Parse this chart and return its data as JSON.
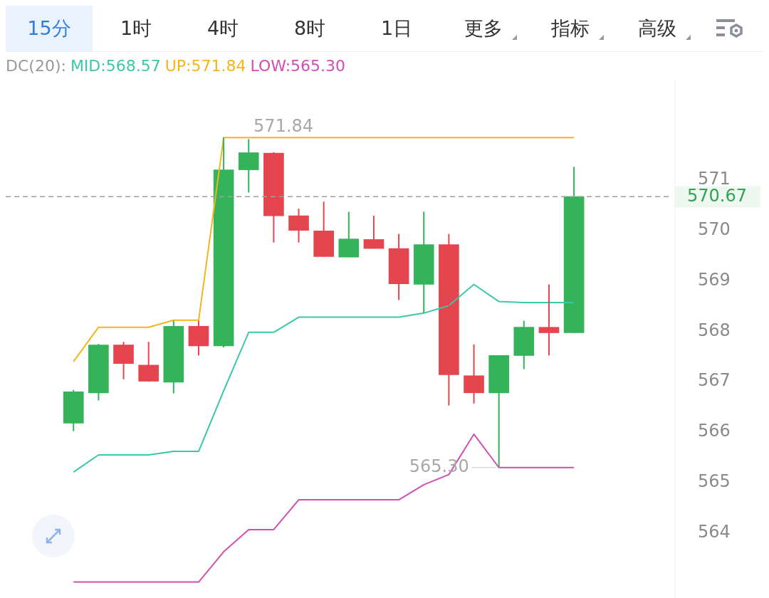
{
  "chart_data": {
    "type": "candlestick",
    "categories": [
      null,
      null,
      null,
      null,
      null,
      null,
      null,
      null,
      null,
      null,
      null,
      null,
      null,
      null,
      null,
      null,
      null,
      null,
      null,
      null,
      null
    ],
    "ohlc": [
      [
        566.18,
        566.84,
        566.02,
        566.8
      ],
      [
        566.78,
        567.75,
        566.63,
        567.73
      ],
      [
        567.73,
        567.79,
        567.05,
        567.36
      ],
      [
        567.33,
        567.79,
        567.0,
        567.01
      ],
      [
        566.99,
        568.21,
        566.77,
        568.1
      ],
      [
        568.1,
        568.21,
        567.52,
        567.71
      ],
      [
        567.71,
        571.84,
        567.68,
        571.2
      ],
      [
        571.2,
        571.81,
        570.75,
        571.54
      ],
      [
        571.53,
        571.55,
        569.76,
        570.29
      ],
      [
        570.29,
        570.43,
        569.76,
        570.0
      ],
      [
        569.99,
        570.57,
        569.48,
        569.48
      ],
      [
        569.47,
        570.37,
        569.47,
        569.83
      ],
      [
        569.82,
        570.29,
        569.64,
        569.64
      ],
      [
        569.64,
        569.93,
        568.62,
        568.94
      ],
      [
        568.93,
        570.37,
        568.36,
        569.72
      ],
      [
        569.72,
        569.93,
        566.53,
        567.14
      ],
      [
        567.12,
        567.74,
        566.57,
        566.78
      ],
      [
        566.78,
        567.52,
        565.3,
        567.52
      ],
      [
        567.52,
        568.21,
        567.25,
        568.08
      ],
      [
        568.08,
        568.93,
        567.52,
        567.97
      ],
      [
        567.97,
        571.26,
        567.97,
        570.67
      ]
    ],
    "colors": [
      "#35b35b",
      "#35b35b",
      "#e5454f",
      "#e5454f",
      "#35b35b",
      "#e5454f",
      "#35b35b",
      "#35b35b",
      "#e5454f",
      "#e5454f",
      "#e5454f",
      "#35b35b",
      "#e5454f",
      "#e5454f",
      "#35b35b",
      "#e5454f",
      "#e5454f",
      "#35b35b",
      "#35b35b",
      "#e5454f",
      "#35b35b"
    ],
    "legend_title": "DC(20):",
    "series": [
      {
        "type": "line",
        "name": "MID:568.57",
        "color": "#3cc8a6",
        "values": [
          565.21,
          565.55,
          565.55,
          565.55,
          565.62,
          565.62,
          566.82,
          567.98,
          567.98,
          568.28,
          568.28,
          568.28,
          568.28,
          568.28,
          568.36,
          568.51,
          568.93,
          568.59,
          568.57,
          568.57,
          568.57
        ]
      },
      {
        "type": "line",
        "name": "UP:571.84",
        "color": "#f0b61c",
        "values": [
          567.4,
          568.08,
          568.08,
          568.08,
          568.22,
          568.22,
          571.84,
          571.84,
          571.84,
          571.84,
          571.84,
          571.84,
          571.84,
          571.84,
          571.84,
          571.84,
          571.84,
          571.84,
          571.84,
          571.84,
          571.84
        ]
      },
      {
        "type": "line",
        "name": "LOW:565.30",
        "color": "#d24fb1",
        "values": [
          563.03,
          563.03,
          563.03,
          563.03,
          563.03,
          563.03,
          563.63,
          564.07,
          564.07,
          564.66,
          564.66,
          564.66,
          564.66,
          564.66,
          564.96,
          565.16,
          565.96,
          565.3,
          565.3,
          565.3,
          565.3
        ]
      }
    ],
    "ylim": [
      562.7,
      573
    ],
    "yticks": [
      564,
      565,
      566,
      567,
      568,
      569,
      570,
      571
    ],
    "ref_lines": [
      {
        "axis": "y",
        "value": 570.67,
        "label": "570.67",
        "color": "#9e9e9e",
        "line_style": "dashed"
      }
    ],
    "annotations": [
      "15分",
      "1时",
      "4时",
      "8时",
      "1日",
      "更多",
      "指标",
      "高级",
      "571.84",
      "565.30"
    ],
    "legend": "top",
    "grid": false
  }
}
